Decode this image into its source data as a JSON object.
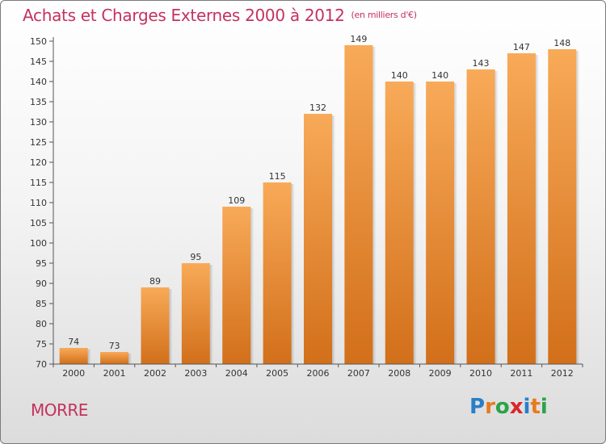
{
  "header": {
    "title": "Achats et Charges Externes 2000 à 2012",
    "unit": "(en milliers d'€)"
  },
  "footer": {
    "commune": "MORRE",
    "logo_letters": [
      {
        "char": "P",
        "color": "#2a7fc6"
      },
      {
        "char": "r",
        "color": "#e87a1f"
      },
      {
        "char": "o",
        "color": "#2aa34a"
      },
      {
        "char": "x",
        "color": "#d9262b"
      },
      {
        "char": "i",
        "color": "#2a7fc6"
      },
      {
        "char": "t",
        "color": "#e87a1f"
      },
      {
        "char": "i",
        "color": "#2aa34a"
      }
    ]
  },
  "chart_data": {
    "type": "bar",
    "title": "Achats et Charges Externes 2000 à 2012",
    "xlabel": "",
    "ylabel": "",
    "categories": [
      "2000",
      "2001",
      "2002",
      "2003",
      "2004",
      "2005",
      "2006",
      "2007",
      "2008",
      "2009",
      "2010",
      "2011",
      "2012"
    ],
    "values": [
      74,
      73,
      89,
      95,
      109,
      115,
      132,
      149,
      140,
      140,
      143,
      147,
      148
    ],
    "ylim": [
      70,
      150
    ],
    "yticks": [
      70,
      75,
      80,
      85,
      90,
      95,
      100,
      105,
      110,
      115,
      120,
      125,
      130,
      135,
      140,
      145,
      150
    ],
    "grid": false,
    "bar_color": "#f0922f",
    "bar_color_light": "#f7a95a",
    "bar_color_dark": "#d06d18"
  }
}
